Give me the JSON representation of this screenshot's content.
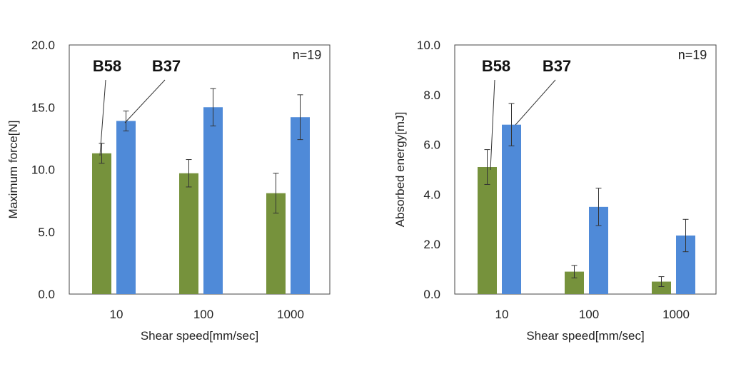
{
  "chart_data": [
    {
      "type": "bar",
      "title": "",
      "xlabel": "Shear speed[mm/sec]",
      "ylabel": "Maximum force[N]",
      "categories": [
        "10",
        "100",
        "1000"
      ],
      "ylim": [
        0,
        20
      ],
      "yticks": [
        "0.0",
        "5.0",
        "10.0",
        "15.0",
        "20.0"
      ],
      "annotation": "n=19",
      "series": [
        {
          "name": "B58",
          "color": "#76923c",
          "values": [
            11.3,
            9.7,
            8.1
          ],
          "errors": [
            0.8,
            1.1,
            1.6
          ]
        },
        {
          "name": "B37",
          "color": "#4f8ad8",
          "values": [
            13.9,
            15.0,
            14.2
          ],
          "errors": [
            0.8,
            1.5,
            1.8
          ]
        }
      ]
    },
    {
      "type": "bar",
      "title": "",
      "xlabel": "Shear speed[mm/sec]",
      "ylabel": "Absorbed energy[mJ]",
      "categories": [
        "10",
        "100",
        "1000"
      ],
      "ylim": [
        0,
        10
      ],
      "yticks": [
        "0.0",
        "2.0",
        "4.0",
        "6.0",
        "8.0",
        "10.0"
      ],
      "annotation": "n=19",
      "series": [
        {
          "name": "B58",
          "color": "#76923c",
          "values": [
            5.1,
            0.9,
            0.5
          ],
          "errors": [
            0.7,
            0.25,
            0.2
          ]
        },
        {
          "name": "B37",
          "color": "#4f8ad8",
          "values": [
            6.8,
            3.5,
            2.35
          ],
          "errors": [
            0.85,
            0.75,
            0.65
          ]
        }
      ]
    }
  ]
}
